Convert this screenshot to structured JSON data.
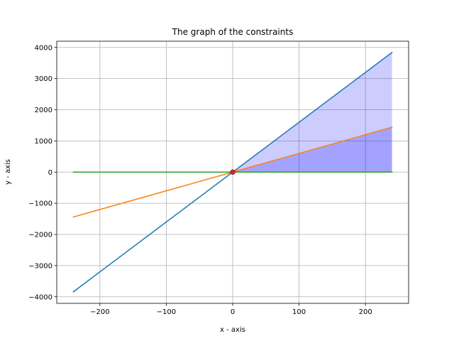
{
  "chart_data": {
    "type": "line",
    "title": "The graph of the constraints",
    "xlabel": "x - axis",
    "ylabel": "y - axis",
    "xlim": [
      -265,
      265
    ],
    "ylim": [
      -4210,
      4200
    ],
    "x_ticks": [
      -200,
      -100,
      0,
      100,
      200
    ],
    "x_tick_labels": [
      "−200",
      "−100",
      "0",
      "100",
      "200"
    ],
    "y_ticks": [
      -4000,
      -3000,
      -2000,
      -1000,
      0,
      1000,
      2000,
      3000,
      4000
    ],
    "y_tick_labels": [
      "−4000",
      "−3000",
      "−2000",
      "−1000",
      "0",
      "1000",
      "2000",
      "3000",
      "4000"
    ],
    "grid": true,
    "series": [
      {
        "color": "#1f77b4",
        "x": [
          -240,
          240
        ],
        "y": [
          -3840,
          3840
        ]
      },
      {
        "color": "#ff7f0e",
        "x": [
          -240,
          240
        ],
        "y": [
          -1440,
          1440
        ]
      },
      {
        "color": "#2ca02c",
        "x": [
          -240,
          240
        ],
        "y": [
          0,
          0
        ]
      }
    ],
    "fills": [
      {
        "color": "#0000ff",
        "opacity": 0.2,
        "x": [
          0,
          240
        ],
        "y_lower": [
          0,
          0
        ],
        "y_upper": [
          0,
          3840
        ]
      },
      {
        "color": "#0000ff",
        "opacity": 0.2,
        "x": [
          0,
          240
        ],
        "y_lower": [
          0,
          0
        ],
        "y_upper": [
          0,
          1440
        ]
      }
    ],
    "points": [
      {
        "x": 0,
        "y": 0,
        "color": "#d62728"
      }
    ]
  }
}
